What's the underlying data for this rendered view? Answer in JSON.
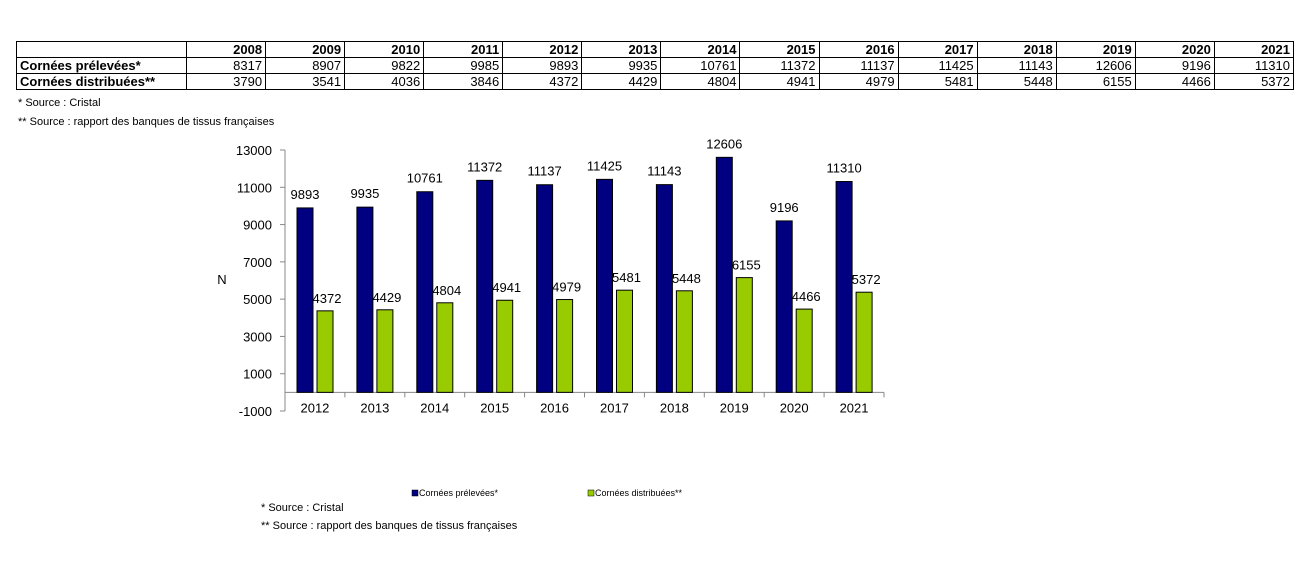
{
  "table": {
    "years": [
      "2008",
      "2009",
      "2010",
      "2011",
      "2012",
      "2013",
      "2014",
      "2015",
      "2016",
      "2017",
      "2018",
      "2019",
      "2020",
      "2021"
    ],
    "rows": [
      {
        "label": "Cornées prélevées*",
        "values": [
          "8317",
          "8907",
          "9822",
          "9985",
          "9893",
          "9935",
          "10761",
          "11372",
          "11137",
          "11425",
          "11143",
          "12606",
          "9196",
          "11310"
        ]
      },
      {
        "label": "Cornées distribuées**",
        "values": [
          "3790",
          "3541",
          "4036",
          "3846",
          "4372",
          "4429",
          "4804",
          "4941",
          "4979",
          "5481",
          "5448",
          "6155",
          "4466",
          "5372"
        ]
      }
    ]
  },
  "notes_top": [
    "* Source :  Cristal",
    "** Source : rapport des banques de tissus françaises"
  ],
  "notes_bottom": [
    "* Source :  Cristal",
    "** Source : rapport des banques de tissus françaises"
  ],
  "colors": {
    "series1": "#000080",
    "series2": "#99cc00"
  },
  "chart_data": {
    "type": "bar",
    "categories": [
      "2012",
      "2013",
      "2014",
      "2015",
      "2016",
      "2017",
      "2018",
      "2019",
      "2020",
      "2021"
    ],
    "series": [
      {
        "name": "Cornées prélevées*",
        "values": [
          9893,
          9935,
          10761,
          11372,
          11137,
          11425,
          11143,
          12606,
          9196,
          11310
        ]
      },
      {
        "name": "Cornées distribuées**",
        "values": [
          4372,
          4429,
          4804,
          4941,
          4979,
          5481,
          5448,
          6155,
          4466,
          5372
        ]
      }
    ],
    "ylabel": "N",
    "ylim": [
      -1000,
      13000
    ],
    "yticks": [
      "-1000",
      "1000",
      "3000",
      "5000",
      "7000",
      "9000",
      "11000",
      "13000"
    ],
    "legend_position": "bottom",
    "grid": false
  }
}
